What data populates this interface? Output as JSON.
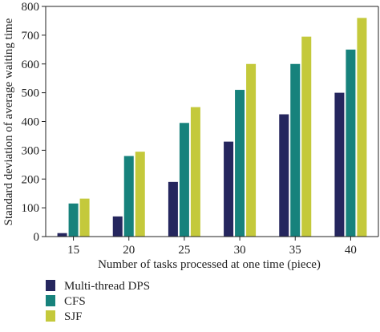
{
  "chart_data": {
    "type": "bar",
    "categories": [
      "15",
      "20",
      "25",
      "30",
      "35",
      "40"
    ],
    "series": [
      {
        "name": "Multi-thread DPS",
        "values": [
          12,
          70,
          190,
          330,
          425,
          500
        ],
        "color": "#25265e"
      },
      {
        "name": "CFS",
        "values": [
          115,
          280,
          395,
          510,
          600,
          650
        ],
        "color": "#17827c"
      },
      {
        "name": "SJF",
        "values": [
          132,
          295,
          450,
          600,
          695,
          760
        ],
        "color": "#c4c93b"
      }
    ],
    "xlabel": "Number of tasks processed at one time (piece)",
    "ylabel": "Standard deviation of average waiting time",
    "ylim": [
      0,
      800
    ],
    "yticks": [
      "0",
      "100",
      "200",
      "300",
      "400",
      "500",
      "600",
      "700",
      "800"
    ],
    "grid": false,
    "legend_position": "bottom-left"
  }
}
